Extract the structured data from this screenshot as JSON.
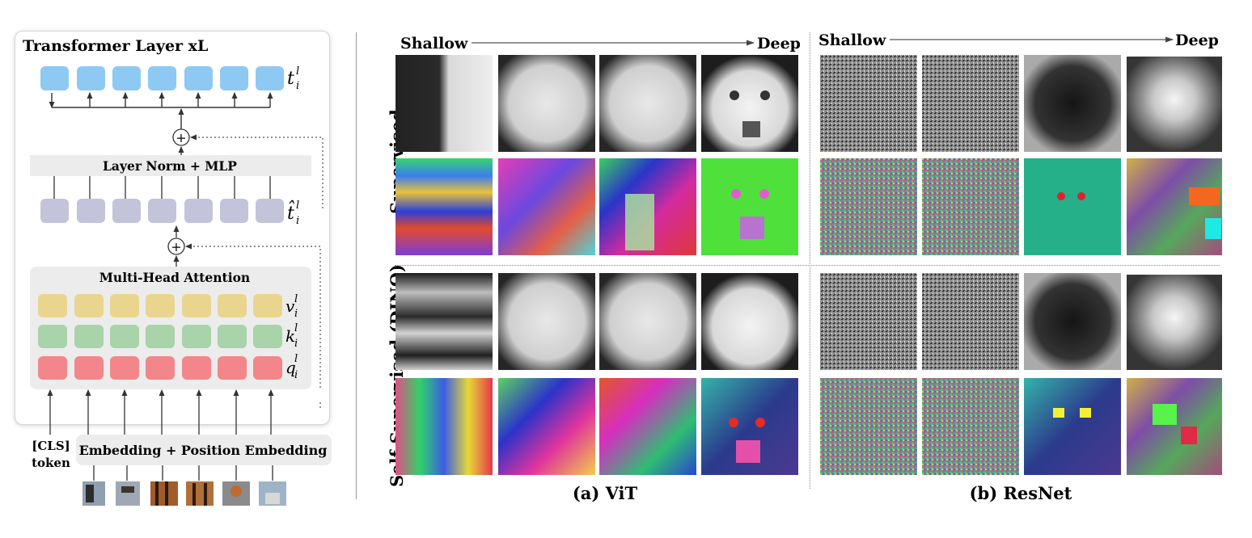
{
  "left_panel": {
    "title": "Transformer Layer xL",
    "mlp_label": "Layer Norm + MLP",
    "attention_label": "Multi-Head Attention",
    "embedding_label": "Embedding + Position Embedding",
    "cls_label": [
      "[CLS]",
      "token"
    ],
    "plus_symbol": "+",
    "token_labels": {
      "output": {
        "base": "t",
        "sup": "l",
        "sub": "i"
      },
      "hat": {
        "base": "t̂",
        "sup": "l",
        "sub": "i"
      },
      "v": {
        "base": "v",
        "sup": "l",
        "sub": "i"
      },
      "k": {
        "base": "k",
        "sup": "l",
        "sub": "i"
      },
      "q": {
        "base": "q",
        "sup": "l",
        "sub": "i"
      }
    },
    "colors": {
      "output_tokens": "#8ec9f3",
      "hat_tokens": "#c3c3d9",
      "v_tokens": "#ead58f",
      "k_tokens": "#a9d3a8",
      "q_tokens": "#f3868a",
      "block_bg": "#ececec"
    }
  },
  "right_panel": {
    "vit": {
      "shallow_label": "Shallow",
      "deep_label": "Deep",
      "caption": "(a) ViT"
    },
    "resnet": {
      "shallow_label": "Shallow",
      "deep_label": "Deep",
      "caption": "(b) ResNet"
    },
    "row_labels": {
      "supervised": "Supervised",
      "self_supervised": "Self-Supervised (DINO)"
    }
  }
}
